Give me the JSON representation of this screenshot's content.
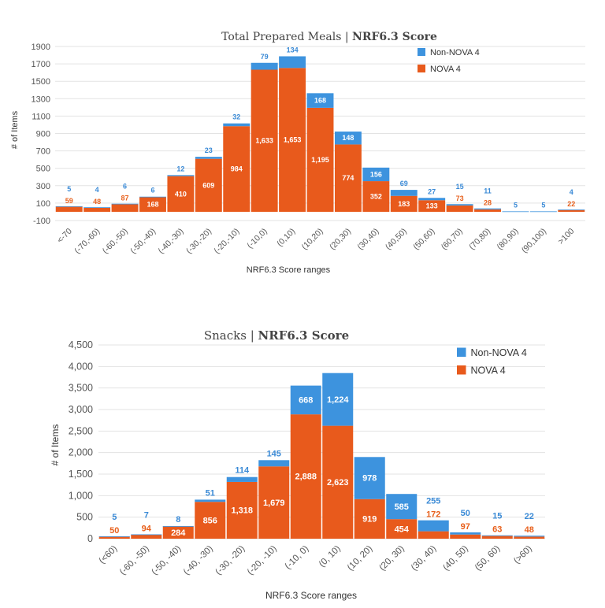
{
  "colors": {
    "non_nova4": "#3d93de",
    "nova4": "#e85a1c",
    "grid": "#e3e3e3"
  },
  "chart_data": [
    {
      "type": "bar",
      "stacked": true,
      "title_main": "Total Prepared Meals | ",
      "title_bold": "NRF6.3 Score",
      "xlabel": "NRF6.3 Score ranges",
      "ylabel": "# of Items",
      "ylim": [
        -100,
        1900
      ],
      "yticks": [
        "1900",
        "1700",
        "1500",
        "1300",
        "1100",
        "900",
        "700",
        "500",
        "300",
        "100",
        "-100"
      ],
      "ytick_values": [
        1900,
        1700,
        1500,
        1300,
        1100,
        900,
        700,
        500,
        300,
        100,
        -100
      ],
      "legend_position": "top-right",
      "categories": [
        "<-70",
        "(-70,-60)",
        "(-60,-50)",
        "(-50,-40)",
        "(-40,-30)",
        "(-30,-20)",
        "(-20,-10)",
        "(-10,0)",
        "(0,10)",
        "(10,20)",
        "(20,30)",
        "(30,40)",
        "(40,50)",
        "(50,60)",
        "(60,70)",
        "(70,80)",
        "(80,90)",
        "(90,100)",
        ">100"
      ],
      "series": [
        {
          "name": "Non-NOVA 4",
          "values": [
            5,
            4,
            6,
            6,
            12,
            23,
            32,
            79,
            134,
            168,
            148,
            156,
            69,
            27,
            15,
            11,
            5,
            5,
            4
          ]
        },
        {
          "name": "NOVA 4",
          "values": [
            59,
            48,
            87,
            168,
            410,
            609,
            984,
            1633,
            1653,
            1195,
            774,
            352,
            183,
            133,
            73,
            28,
            null,
            null,
            22
          ]
        }
      ]
    },
    {
      "type": "bar",
      "stacked": true,
      "title_main": "Snacks | ",
      "title_bold": "NRF6.3 Score",
      "xlabel": "NRF6.3 Score ranges",
      "ylabel": "# of Items",
      "ylim": [
        0,
        4500
      ],
      "yticks": [
        "4,500",
        "4,000",
        "3,500",
        "3,000",
        "2,500",
        "2,000",
        "1,500",
        "1,000",
        "500",
        "0"
      ],
      "ytick_values": [
        4500,
        4000,
        3500,
        3000,
        2500,
        2000,
        1500,
        1000,
        500,
        0
      ],
      "legend_position": "top-right",
      "categories": [
        "(<60)",
        "(-60, -50)",
        "(-50, -40)",
        "(-40, -30)",
        "(-30, -20)",
        "(-20, -10)",
        "(-10, 0)",
        "(0, 10)",
        "(10, 20)",
        "(20, 30)",
        "(30, 40)",
        "(40, 50)",
        "(50, 60)",
        "(>60)"
      ],
      "series": [
        {
          "name": "Non-NOVA 4",
          "values": [
            5,
            7,
            8,
            51,
            114,
            145,
            668,
            1224,
            978,
            585,
            255,
            50,
            15,
            22
          ]
        },
        {
          "name": "NOVA 4",
          "values": [
            50,
            94,
            284,
            856,
            1318,
            1679,
            2888,
            2623,
            919,
            454,
            172,
            97,
            63,
            48
          ]
        }
      ]
    }
  ]
}
